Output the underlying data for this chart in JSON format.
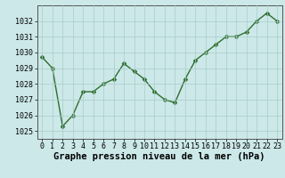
{
  "x": [
    0,
    1,
    2,
    3,
    4,
    5,
    6,
    7,
    8,
    9,
    10,
    11,
    12,
    13,
    14,
    15,
    16,
    17,
    18,
    19,
    20,
    21,
    22,
    23
  ],
  "y": [
    1029.7,
    1029.0,
    1025.3,
    1026.0,
    1027.5,
    1027.5,
    1028.0,
    1028.3,
    1029.3,
    1028.8,
    1028.3,
    1027.5,
    1027.0,
    1026.8,
    1028.3,
    1029.5,
    1030.0,
    1030.5,
    1031.0,
    1031.0,
    1031.3,
    1032.0,
    1032.5,
    1032.0
  ],
  "line_color": "#2d6e2d",
  "marker_color": "#2d6e2d",
  "bg_color": "#cce8e8",
  "grid_color": "#aacccc",
  "xlabel": "Graphe pression niveau de la mer (hPa)",
  "xlabel_fontsize": 7.5,
  "ylabel_ticks": [
    1025,
    1026,
    1027,
    1028,
    1029,
    1030,
    1031,
    1032
  ],
  "xlim": [
    -0.5,
    23.5
  ],
  "ylim": [
    1024.5,
    1033.0
  ],
  "xticks": [
    0,
    1,
    2,
    3,
    4,
    5,
    6,
    7,
    8,
    9,
    10,
    11,
    12,
    13,
    14,
    15,
    16,
    17,
    18,
    19,
    20,
    21,
    22,
    23
  ],
  "tick_fontsize": 6,
  "line_width": 1.0,
  "marker_size": 2.5
}
